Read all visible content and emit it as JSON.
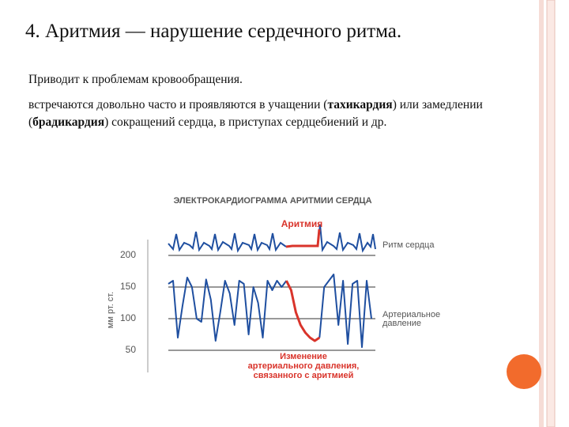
{
  "slide": {
    "title": "4. Аритмия — нарушение сердечного ритма.",
    "paragraph_1": "Приводит к проблемам кровообращения.",
    "paragraph_2": [
      {
        "text": "встречаются довольно часто и проявляются в учащении (",
        "bold": false
      },
      {
        "text": "тахикардия",
        "bold": true
      },
      {
        "text": ") или замедлении (",
        "bold": false
      },
      {
        "text": "брадикардия",
        "bold": true
      },
      {
        "text": ") сокращений сердца, в приступах сердцебиений и др.",
        "bold": false
      }
    ]
  },
  "figure": {
    "type": "line",
    "title": "ЭЛЕКТРОКАРДИОГРАММА АРИТМИИ СЕРДЦА",
    "y_label": "мм рт. ст.",
    "ylim": [
      15,
      225
    ],
    "yticks": [
      50,
      100,
      150,
      200
    ],
    "grid": true,
    "ecg_label": "Ритм сердца",
    "arrhythmia_label": "Аритмия",
    "pressure_label": [
      "Артериальное",
      "давление"
    ],
    "change_label": [
      "Изменение",
      "артериального давления,",
      "связанного с аритмией"
    ],
    "series": [
      {
        "color": "#1f4fa0",
        "values": [
          155,
          160,
          70,
          120,
          165,
          150,
          100,
          95,
          162,
          130,
          65,
          110,
          160,
          140,
          90,
          160,
          155,
          75,
          150,
          125,
          70,
          160,
          145,
          160,
          150,
          160,
          null,
          null,
          null,
          null,
          null,
          null,
          70,
          150,
          160,
          170,
          90,
          160,
          60,
          155,
          160,
          55,
          160,
          100
        ]
      },
      {
        "color": "#d9342b",
        "values": [
          null,
          null,
          null,
          null,
          null,
          null,
          null,
          null,
          null,
          null,
          null,
          null,
          null,
          null,
          null,
          null,
          null,
          null,
          null,
          null,
          null,
          null,
          null,
          null,
          null,
          160,
          145,
          110,
          90,
          78,
          70,
          65,
          70,
          null,
          null,
          null,
          null,
          null,
          null,
          null,
          null,
          null,
          null,
          null
        ]
      }
    ]
  }
}
